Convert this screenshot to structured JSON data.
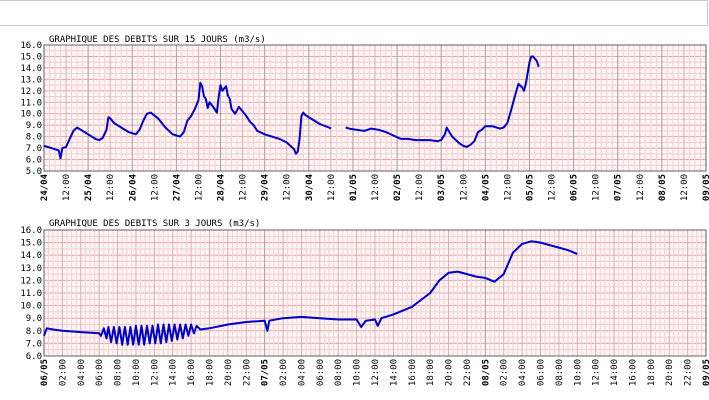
{
  "chart_data": [
    {
      "type": "line",
      "title": "GRAPHIQUE DES DEBITS SUR 15 JOURS (m3/s)",
      "ylim": [
        5.0,
        16.0
      ],
      "ytick_step": 1.0,
      "yticks": [
        "16.0",
        "15.0",
        "14.0",
        "13.0",
        "12.0",
        "11.0",
        "10.0",
        "9.0",
        "8.0",
        "7.0",
        "6.0",
        "5.0"
      ],
      "xlim_hours": [
        0,
        360
      ],
      "xticks": [
        "24/04",
        "12:00",
        "25/04",
        "12:00",
        "26/04",
        "12:00",
        "27/04",
        "12:00",
        "28/04",
        "12:00",
        "29/04",
        "12:00",
        "30/04",
        "12:00",
        "01/05",
        "12:00",
        "02/05",
        "12:00",
        "03/05",
        "12:00",
        "04/05",
        "12:00",
        "05/05",
        "12:00",
        "06/05",
        "12:00",
        "07/05",
        "12:00",
        "08/05",
        "12:00",
        "09/05"
      ],
      "series": [
        {
          "color": "#0000cc",
          "segments": [
            [
              [
                0,
                7.2
              ],
              [
                4,
                7.0
              ],
              [
                8,
                6.8
              ],
              [
                9,
                6.1
              ],
              [
                10,
                7.0
              ],
              [
                12,
                7.1
              ],
              [
                14,
                7.8
              ],
              [
                16,
                8.5
              ],
              [
                18,
                8.8
              ],
              [
                20,
                8.6
              ],
              [
                24,
                8.2
              ],
              [
                28,
                7.8
              ],
              [
                30,
                7.7
              ],
              [
                32,
                7.9
              ],
              [
                34,
                8.6
              ],
              [
                35,
                9.7
              ],
              [
                36,
                9.6
              ],
              [
                38,
                9.2
              ],
              [
                42,
                8.8
              ],
              [
                46,
                8.4
              ],
              [
                50,
                8.2
              ],
              [
                52,
                8.6
              ],
              [
                54,
                9.4
              ],
              [
                56,
                10.0
              ],
              [
                58,
                10.1
              ],
              [
                62,
                9.6
              ],
              [
                66,
                8.8
              ],
              [
                70,
                8.2
              ],
              [
                74,
                8.0
              ],
              [
                76,
                8.4
              ],
              [
                78,
                9.4
              ],
              [
                80,
                9.8
              ],
              [
                82,
                10.4
              ],
              [
                84,
                11.2
              ],
              [
                85,
                12.7
              ],
              [
                86,
                12.4
              ],
              [
                87,
                11.5
              ],
              [
                88,
                11.3
              ],
              [
                89,
                10.5
              ],
              [
                90,
                11.0
              ],
              [
                92,
                10.6
              ],
              [
                94,
                10.1
              ],
              [
                95,
                11.5
              ],
              [
                96,
                12.5
              ],
              [
                97,
                12.0
              ],
              [
                98,
                12.2
              ],
              [
                99,
                12.4
              ],
              [
                100,
                11.6
              ],
              [
                101,
                11.3
              ],
              [
                102,
                10.4
              ],
              [
                104,
                10.0
              ],
              [
                106,
                10.6
              ],
              [
                108,
                10.2
              ],
              [
                110,
                9.8
              ],
              [
                112,
                9.3
              ],
              [
                114,
                9.0
              ],
              [
                116,
                8.5
              ],
              [
                120,
                8.2
              ],
              [
                124,
                8.0
              ],
              [
                128,
                7.8
              ],
              [
                132,
                7.5
              ],
              [
                134,
                7.2
              ],
              [
                136,
                6.9
              ],
              [
                137,
                6.5
              ],
              [
                138,
                6.7
              ],
              [
                139,
                7.8
              ],
              [
                140,
                9.8
              ],
              [
                141,
                10.1
              ],
              [
                142,
                9.9
              ],
              [
                146,
                9.5
              ],
              [
                150,
                9.1
              ],
              [
                155,
                8.8
              ],
              [
                156,
                8.7
              ]
            ],
            [
              [
                164,
                8.8
              ],
              [
                166,
                8.7
              ],
              [
                170,
                8.6
              ],
              [
                174,
                8.5
              ],
              [
                178,
                8.7
              ],
              [
                182,
                8.6
              ],
              [
                186,
                8.4
              ],
              [
                190,
                8.1
              ],
              [
                194,
                7.8
              ],
              [
                198,
                7.8
              ],
              [
                202,
                7.7
              ],
              [
                206,
                7.7
              ],
              [
                210,
                7.7
              ],
              [
                214,
                7.6
              ],
              [
                216,
                7.7
              ],
              [
                218,
                8.2
              ],
              [
                219,
                8.8
              ],
              [
                220,
                8.5
              ],
              [
                222,
                8.0
              ],
              [
                224,
                7.7
              ],
              [
                226,
                7.4
              ],
              [
                228,
                7.2
              ],
              [
                230,
                7.1
              ],
              [
                232,
                7.3
              ],
              [
                234,
                7.6
              ],
              [
                236,
                8.4
              ],
              [
                238,
                8.6
              ],
              [
                240,
                8.9
              ],
              [
                244,
                8.9
              ],
              [
                248,
                8.7
              ],
              [
                250,
                8.8
              ],
              [
                252,
                9.2
              ],
              [
                254,
                10.3
              ],
              [
                256,
                11.5
              ],
              [
                258,
                12.6
              ],
              [
                260,
                12.3
              ],
              [
                261,
                12.0
              ],
              [
                262,
                12.6
              ],
              [
                264,
                14.5
              ],
              [
                265,
                15.0
              ],
              [
                266,
                15.0
              ],
              [
                268,
                14.6
              ],
              [
                269,
                14.1
              ]
            ]
          ]
        }
      ]
    },
    {
      "type": "line",
      "title": "GRAPHIQUE DES DEBITS SUR 3 JOURS (m3/s)",
      "ylim": [
        6.0,
        16.0
      ],
      "ytick_step": 1.0,
      "yticks": [
        "16.0",
        "15.0",
        "14.0",
        "13.0",
        "12.0",
        "11.0",
        "10.0",
        "9.0",
        "8.0",
        "7.0",
        "6.0"
      ],
      "xlim_hours": [
        0,
        72
      ],
      "xticks": [
        "06/05",
        "02:00",
        "04:00",
        "06:00",
        "08:00",
        "10:00",
        "12:00",
        "14:00",
        "16:00",
        "18:00",
        "20:00",
        "22:00",
        "07/05",
        "02:00",
        "04:00",
        "06:00",
        "08:00",
        "10:00",
        "12:00",
        "14:00",
        "16:00",
        "18:00",
        "20:00",
        "22:00",
        "08/05",
        "02:00",
        "04:00",
        "06:00",
        "08:00",
        "10:00",
        "12:00",
        "14:00",
        "16:00",
        "18:00",
        "20:00",
        "22:00",
        "09/05"
      ],
      "series": [
        {
          "color": "#0000cc",
          "segments": [
            [
              [
                0,
                7.6
              ],
              [
                0.3,
                8.2
              ],
              [
                1,
                8.1
              ],
              [
                2,
                8.0
              ],
              [
                4,
                7.9
              ],
              [
                6,
                7.8
              ],
              [
                6.2,
                7.6
              ],
              [
                6.5,
                8.2
              ],
              [
                6.8,
                7.4
              ],
              [
                7.0,
                8.3
              ],
              [
                7.3,
                7.1
              ],
              [
                7.6,
                8.3
              ],
              [
                7.9,
                7.0
              ],
              [
                8.2,
                8.3
              ],
              [
                8.5,
                6.9
              ],
              [
                8.8,
                8.3
              ],
              [
                9.1,
                6.9
              ],
              [
                9.4,
                8.3
              ],
              [
                9.7,
                6.9
              ],
              [
                10.0,
                8.4
              ],
              [
                10.3,
                6.9
              ],
              [
                10.6,
                8.4
              ],
              [
                10.9,
                6.9
              ],
              [
                11.2,
                8.4
              ],
              [
                11.5,
                7.0
              ],
              [
                11.8,
                8.4
              ],
              [
                12.1,
                7.0
              ],
              [
                12.4,
                8.5
              ],
              [
                12.7,
                7.0
              ],
              [
                13.0,
                8.5
              ],
              [
                13.3,
                7.1
              ],
              [
                13.6,
                8.5
              ],
              [
                13.9,
                7.2
              ],
              [
                14.2,
                8.5
              ],
              [
                14.5,
                7.3
              ],
              [
                14.8,
                8.5
              ],
              [
                15.1,
                7.4
              ],
              [
                15.4,
                8.5
              ],
              [
                15.7,
                7.6
              ],
              [
                16.0,
                8.5
              ],
              [
                16.3,
                7.8
              ],
              [
                16.6,
                8.4
              ],
              [
                17,
                8.1
              ],
              [
                18,
                8.2
              ],
              [
                20,
                8.5
              ],
              [
                22,
                8.7
              ],
              [
                24,
                8.8
              ],
              [
                24.3,
                8.0
              ],
              [
                24.5,
                8.8
              ],
              [
                26,
                9.0
              ],
              [
                28,
                9.1
              ],
              [
                30,
                9.0
              ],
              [
                32,
                8.9
              ],
              [
                34,
                8.9
              ],
              [
                34.5,
                8.3
              ],
              [
                35,
                8.8
              ],
              [
                36,
                8.9
              ],
              [
                36.3,
                8.4
              ],
              [
                36.7,
                9.0
              ],
              [
                38,
                9.3
              ],
              [
                40,
                9.9
              ],
              [
                42,
                11.0
              ],
              [
                43,
                12.0
              ],
              [
                44,
                12.6
              ],
              [
                45,
                12.7
              ],
              [
                46,
                12.5
              ],
              [
                47,
                12.3
              ],
              [
                48,
                12.2
              ],
              [
                49,
                11.9
              ],
              [
                50,
                12.5
              ],
              [
                51,
                14.2
              ],
              [
                52,
                14.9
              ],
              [
                53,
                15.1
              ],
              [
                54,
                15.0
              ],
              [
                55,
                14.8
              ],
              [
                56,
                14.6
              ],
              [
                57,
                14.4
              ],
              [
                58,
                14.1
              ]
            ]
          ]
        }
      ]
    }
  ]
}
